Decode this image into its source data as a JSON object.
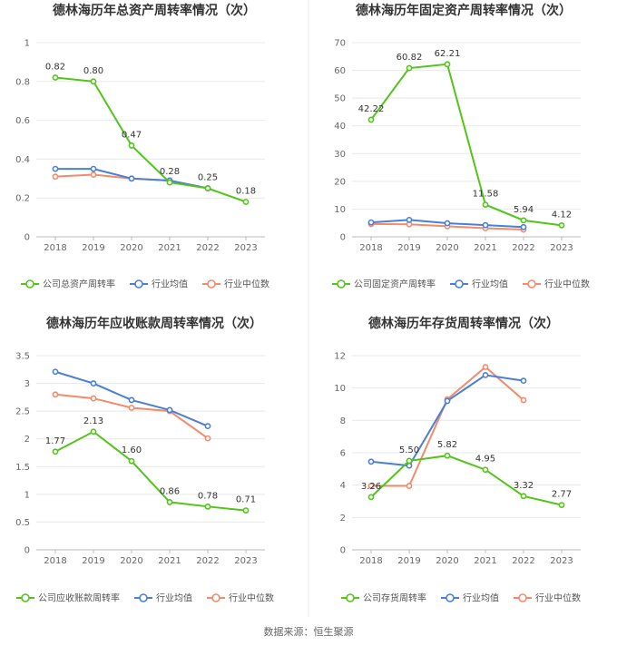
{
  "colors": {
    "company": "#52c41a",
    "avg": "#4a7fd6",
    "median": "#f28a6c"
  },
  "legend": {
    "avg": "行业均值",
    "median": "行业中位数"
  },
  "source": "数据来源：恒生聚源",
  "chart_data": [
    {
      "type": "line",
      "title": "德林海历年总资产周转率情况（次）",
      "categories": [
        "2018",
        "2019",
        "2020",
        "2021",
        "2022",
        "2023"
      ],
      "ylim": [
        0,
        1
      ],
      "yticks": [
        "0",
        "0.2",
        "0.4",
        "0.6",
        "0.8",
        "1"
      ],
      "series": [
        {
          "name": "公司总资产周转率",
          "role": "company",
          "values": [
            0.82,
            0.8,
            0.47,
            0.28,
            0.25,
            0.18
          ],
          "labels": [
            "0.82",
            "0.80",
            "0.47",
            "0.28",
            "0.25",
            "0.18"
          ]
        },
        {
          "name": "行业均值",
          "role": "avg",
          "values": [
            0.35,
            0.35,
            0.3,
            0.29,
            0.25,
            null
          ]
        },
        {
          "name": "行业中位数",
          "role": "median",
          "values": [
            0.31,
            0.32,
            0.3,
            0.29,
            0.25,
            null
          ]
        }
      ]
    },
    {
      "type": "line",
      "title": "德林海历年固定资产周转率情况（次）",
      "categories": [
        "2018",
        "2019",
        "2020",
        "2021",
        "2022",
        "2023"
      ],
      "ylim": [
        0,
        70
      ],
      "yticks": [
        "0",
        "10",
        "20",
        "30",
        "40",
        "50",
        "60",
        "70"
      ],
      "series": [
        {
          "name": "公司固定资产周转率",
          "role": "company",
          "values": [
            42.22,
            60.82,
            62.21,
            11.58,
            5.94,
            4.12
          ],
          "labels": [
            "42.22",
            "60.82",
            "62.21",
            "11.58",
            "5.94",
            "4.12"
          ]
        },
        {
          "name": "行业均值",
          "role": "avg",
          "values": [
            5.2,
            6.1,
            4.9,
            4.2,
            3.5,
            null
          ]
        },
        {
          "name": "行业中位数",
          "role": "median",
          "values": [
            4.6,
            4.5,
            3.8,
            3.1,
            2.6,
            null
          ]
        }
      ]
    },
    {
      "type": "line",
      "title": "德林海历年应收账款周转率情况（次）",
      "categories": [
        "2018",
        "2019",
        "2020",
        "2021",
        "2022",
        "2023"
      ],
      "ylim": [
        0,
        3.5
      ],
      "yticks": [
        "0",
        "0.5",
        "1",
        "1.5",
        "2",
        "2.5",
        "3",
        "3.5"
      ],
      "series": [
        {
          "name": "公司应收账款周转率",
          "role": "company",
          "values": [
            1.77,
            2.13,
            1.6,
            0.86,
            0.78,
            0.71
          ],
          "labels": [
            "1.77",
            "2.13",
            "1.60",
            "0.86",
            "0.78",
            "0.71"
          ]
        },
        {
          "name": "行业均值",
          "role": "avg",
          "values": [
            3.21,
            3.0,
            2.7,
            2.52,
            2.23,
            null
          ]
        },
        {
          "name": "行业中位数",
          "role": "median",
          "values": [
            2.8,
            2.73,
            2.56,
            2.5,
            2.01,
            null
          ]
        }
      ]
    },
    {
      "type": "line",
      "title": "德林海历年存货周转率情况（次）",
      "categories": [
        "2018",
        "2019",
        "2020",
        "2021",
        "2022",
        "2023"
      ],
      "ylim": [
        0,
        12
      ],
      "yticks": [
        "0",
        "2",
        "4",
        "6",
        "8",
        "10",
        "12"
      ],
      "series": [
        {
          "name": "公司存货周转率",
          "role": "company",
          "values": [
            3.26,
            5.5,
            5.82,
            4.95,
            3.32,
            2.77
          ],
          "labels": [
            "3.26",
            "5.50",
            "5.82",
            "4.95",
            "3.32",
            "2.77"
          ]
        },
        {
          "name": "行业均值",
          "role": "avg",
          "values": [
            5.45,
            5.2,
            9.2,
            10.8,
            10.45,
            null
          ]
        },
        {
          "name": "行业中位数",
          "role": "median",
          "values": [
            3.95,
            3.95,
            9.3,
            11.3,
            9.25,
            null
          ]
        }
      ]
    }
  ]
}
